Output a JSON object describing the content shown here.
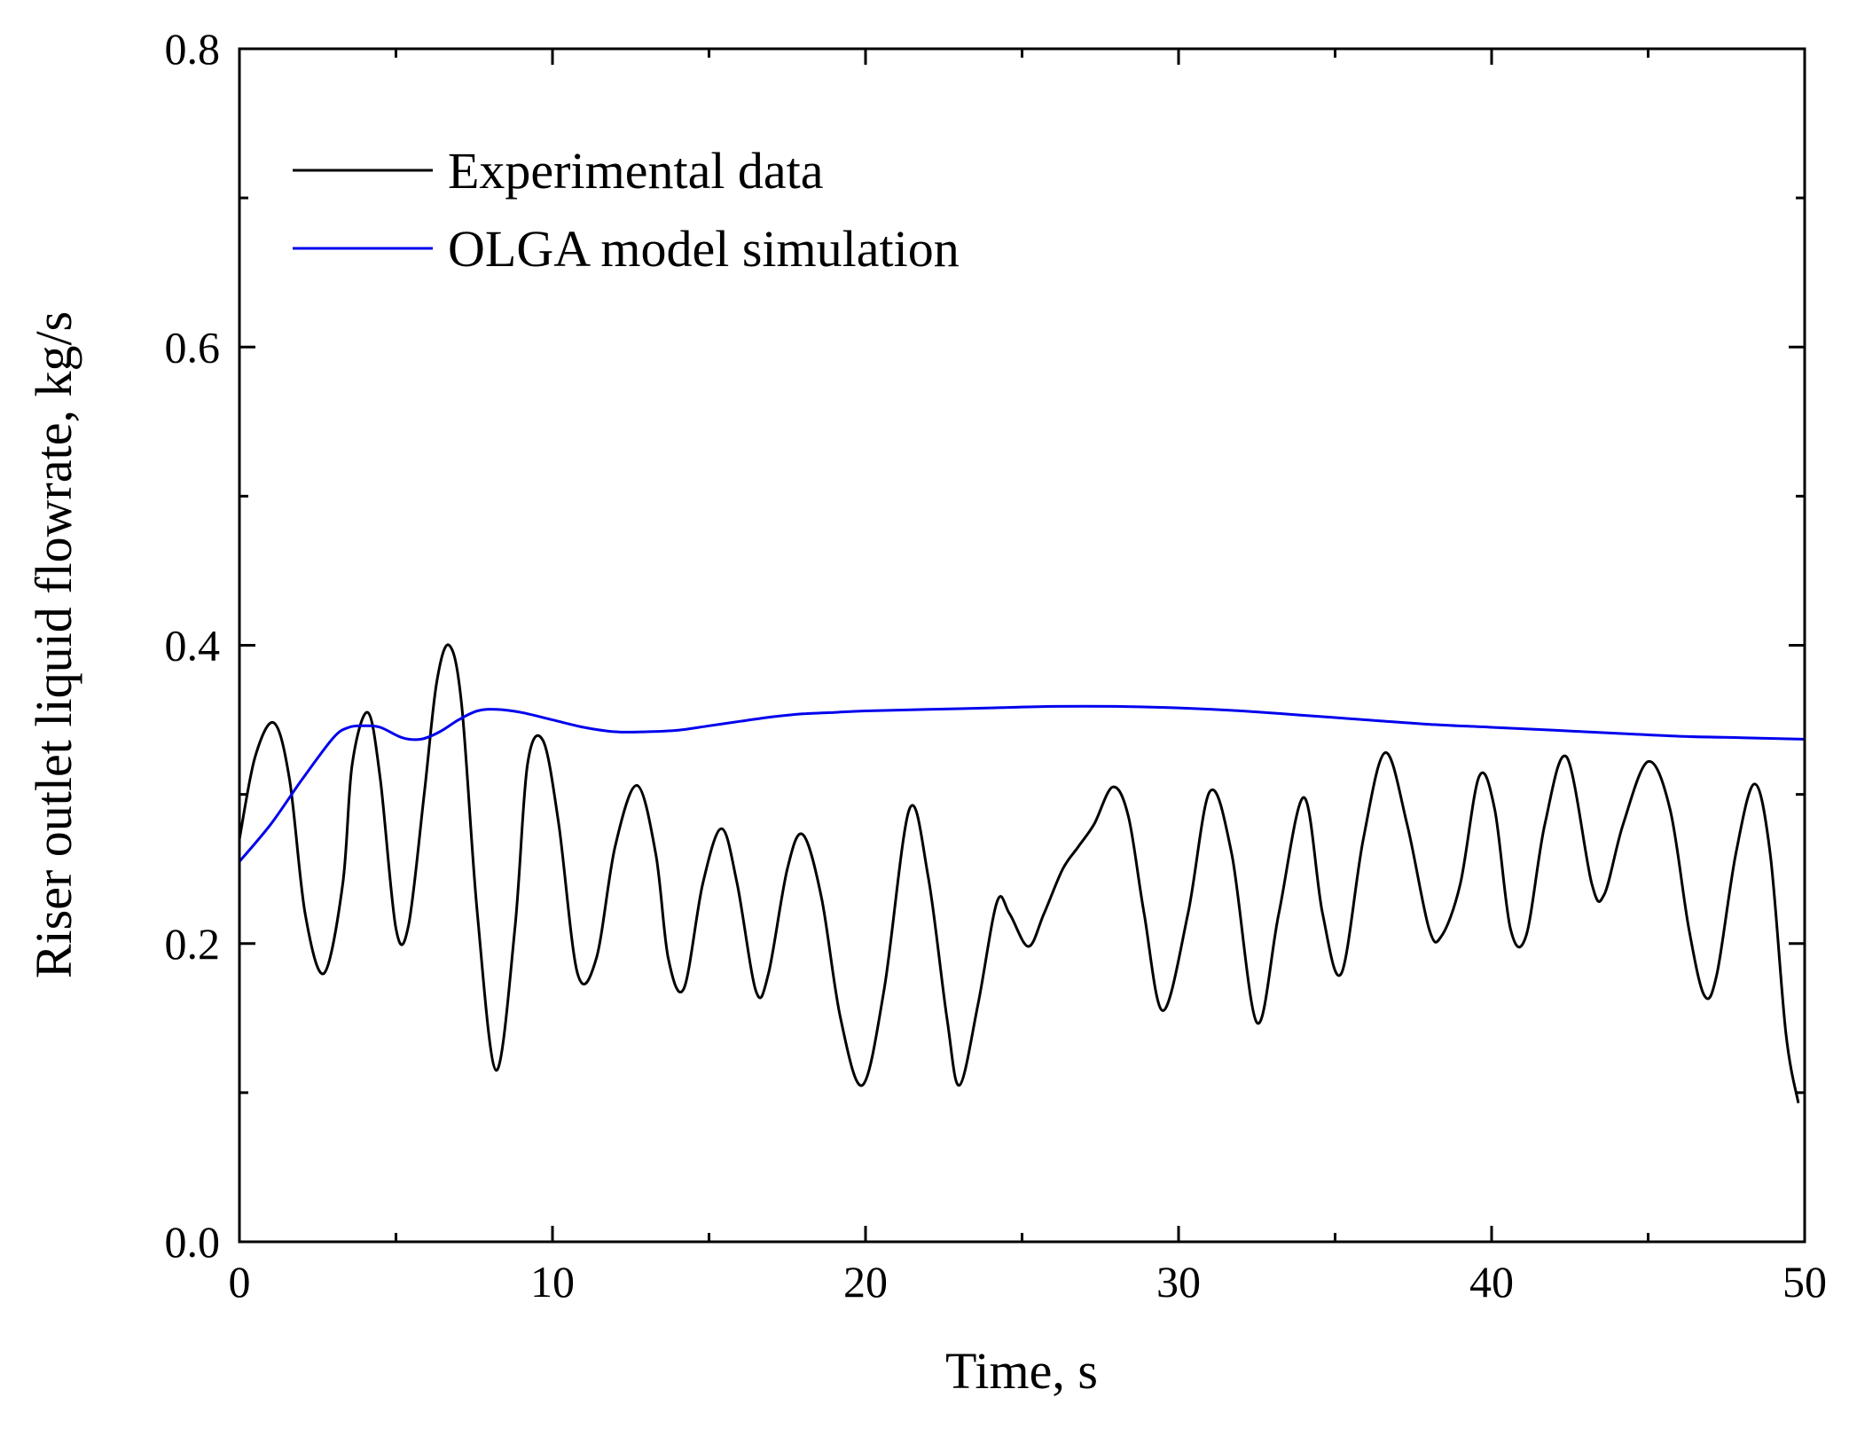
{
  "chart_data": {
    "type": "line",
    "title": "",
    "xlabel": "Time, s",
    "ylabel": "Riser outlet liquid flowrate, kg/s",
    "xlim": [
      0,
      50
    ],
    "ylim": [
      0,
      0.8
    ],
    "xticks": [
      0,
      10,
      20,
      30,
      40,
      50
    ],
    "yticks": [
      0.0,
      0.2,
      0.4,
      0.6,
      0.8
    ],
    "xtick_labels": [
      "0",
      "10",
      "20",
      "30",
      "40",
      "50"
    ],
    "ytick_labels": [
      "0.0",
      "0.2",
      "0.4",
      "0.6",
      "0.8"
    ],
    "grid": false,
    "legend_position": "top-left",
    "series": [
      {
        "name": "Experimental data",
        "color": "#000000",
        "x": [
          0,
          0.5,
          1.1,
          1.6,
          2.1,
          2.7,
          3.3,
          3.6,
          4.1,
          4.5,
          5.0,
          5.4,
          5.9,
          6.3,
          6.7,
          7.1,
          7.6,
          8.2,
          8.8,
          9.2,
          9.7,
          10.2,
          10.8,
          11.4,
          12.0,
          12.7,
          13.3,
          13.7,
          14.2,
          14.8,
          15.4,
          15.9,
          16.5,
          16.9,
          17.5,
          18.0,
          18.6,
          19.2,
          19.9,
          20.6,
          21.4,
          22.0,
          22.6,
          23.0,
          23.6,
          24.2,
          24.6,
          25.2,
          25.7,
          26.3,
          26.8,
          27.3,
          27.9,
          28.4,
          28.9,
          29.5,
          30.3,
          31.0,
          31.7,
          32.5,
          33.2,
          34.0,
          34.6,
          35.2,
          35.9,
          36.6,
          37.3,
          38.0,
          38.4,
          39.0,
          39.6,
          40.1,
          40.6,
          41.1,
          41.7,
          42.4,
          43.2,
          43.6,
          44.2,
          45.0,
          45.7,
          46.3,
          46.8,
          47.2,
          47.8,
          48.4,
          48.9,
          49.4,
          49.8
        ],
        "y": [
          0.27,
          0.325,
          0.348,
          0.31,
          0.22,
          0.18,
          0.24,
          0.32,
          0.355,
          0.31,
          0.21,
          0.212,
          0.3,
          0.375,
          0.4,
          0.36,
          0.22,
          0.115,
          0.21,
          0.32,
          0.336,
          0.28,
          0.18,
          0.19,
          0.265,
          0.306,
          0.26,
          0.19,
          0.17,
          0.24,
          0.277,
          0.24,
          0.168,
          0.18,
          0.25,
          0.273,
          0.23,
          0.15,
          0.105,
          0.17,
          0.29,
          0.245,
          0.15,
          0.105,
          0.16,
          0.228,
          0.22,
          0.198,
          0.22,
          0.25,
          0.265,
          0.28,
          0.305,
          0.285,
          0.22,
          0.155,
          0.22,
          0.302,
          0.26,
          0.147,
          0.22,
          0.298,
          0.22,
          0.18,
          0.27,
          0.328,
          0.28,
          0.21,
          0.205,
          0.24,
          0.312,
          0.29,
          0.21,
          0.205,
          0.28,
          0.325,
          0.24,
          0.233,
          0.28,
          0.322,
          0.29,
          0.21,
          0.165,
          0.18,
          0.26,
          0.307,
          0.26,
          0.14,
          0.093
        ]
      },
      {
        "name": "OLGA model simulation",
        "color": "#0000ee",
        "x": [
          0,
          1,
          2,
          3,
          3.5,
          4,
          4.5,
          5.2,
          5.8,
          6.4,
          7.0,
          7.6,
          8.2,
          9.0,
          10,
          11,
          12,
          13,
          14,
          15,
          16,
          17,
          18,
          19,
          20,
          22,
          24,
          26,
          28,
          30,
          32,
          34,
          36,
          38,
          40,
          42,
          44,
          46,
          48,
          50
        ],
        "y": [
          0.255,
          0.28,
          0.31,
          0.338,
          0.345,
          0.346,
          0.345,
          0.338,
          0.337,
          0.342,
          0.35,
          0.356,
          0.357,
          0.355,
          0.35,
          0.345,
          0.342,
          0.342,
          0.343,
          0.346,
          0.349,
          0.352,
          0.354,
          0.355,
          0.356,
          0.357,
          0.358,
          0.359,
          0.359,
          0.358,
          0.356,
          0.353,
          0.35,
          0.347,
          0.345,
          0.343,
          0.341,
          0.339,
          0.338,
          0.337
        ]
      }
    ]
  }
}
